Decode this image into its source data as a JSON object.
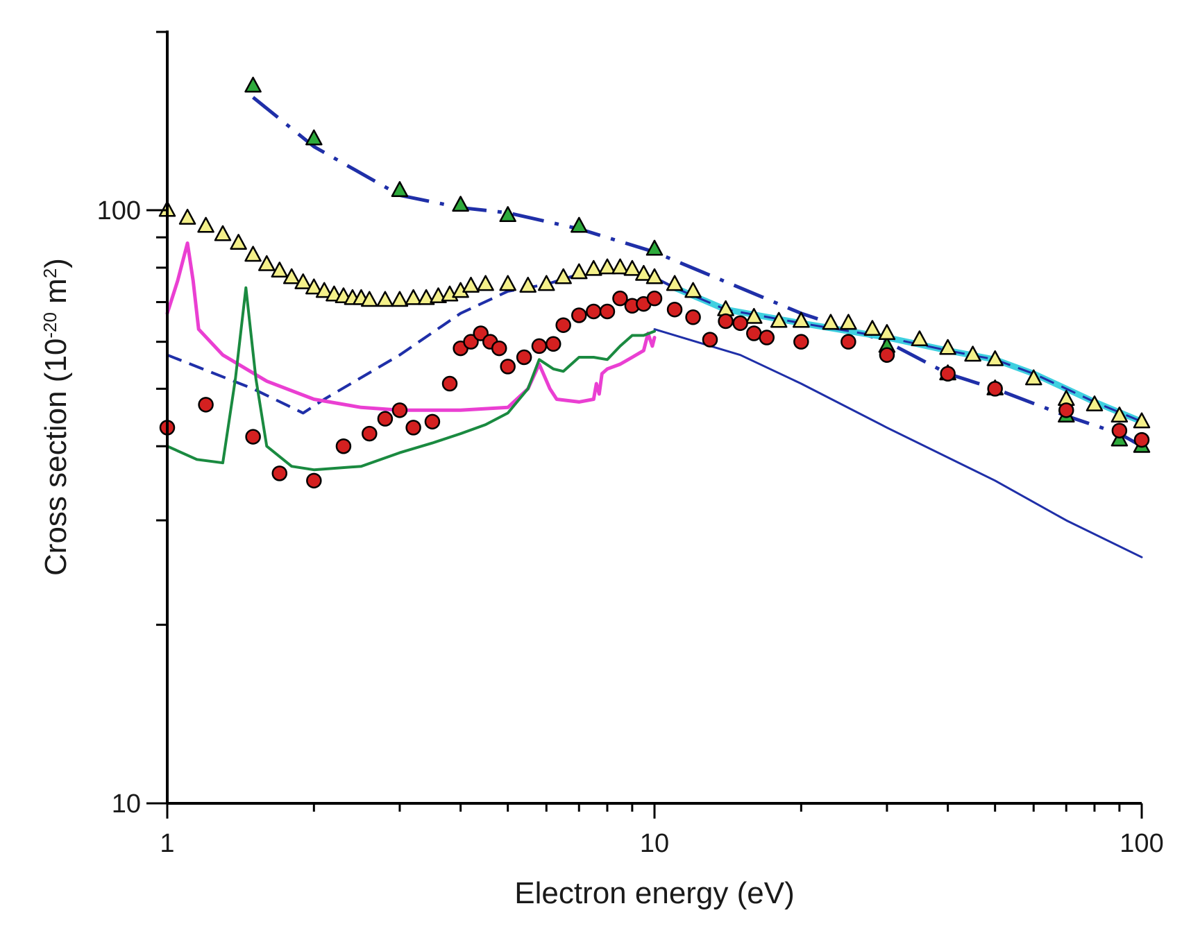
{
  "chart_data": {
    "type": "scatter",
    "title": "",
    "xlabel": "Electron energy (eV)",
    "ylabel_main": "Cross section (10",
    "ylabel_exp": "-20",
    "ylabel_unit": " m",
    "ylabel_unit_exp": "2",
    "ylabel_close": ")",
    "xscale": "log",
    "yscale": "log",
    "xlim": [
      1,
      100
    ],
    "ylim": [
      10,
      180
    ],
    "x_ticks": [
      {
        "value": 1,
        "label": "1"
      },
      {
        "value": 10,
        "label": "10"
      },
      {
        "value": 100,
        "label": "100"
      }
    ],
    "y_ticks": [
      {
        "value": 10,
        "label": "10"
      },
      {
        "value": 100,
        "label": "100"
      }
    ],
    "y_minor_ticks": [
      20,
      30,
      40,
      50,
      60,
      70,
      80,
      90
    ],
    "grid": false,
    "legend": "none",
    "series": [
      {
        "name": "Green-filled triangles",
        "kind": "marker",
        "marker": "triangle",
        "color": "#2eaa3c",
        "points": [
          [
            1.5,
            162
          ],
          [
            2,
            132
          ],
          [
            3,
            108
          ],
          [
            4,
            102
          ],
          [
            5,
            98
          ],
          [
            7,
            94
          ],
          [
            10,
            86
          ],
          [
            20,
            65
          ],
          [
            30,
            59
          ],
          [
            40,
            53
          ],
          [
            50,
            50
          ],
          [
            70,
            45
          ],
          [
            90,
            41
          ],
          [
            100,
            40
          ]
        ]
      },
      {
        "name": "Yellow-filled triangles",
        "kind": "marker",
        "marker": "triangle",
        "color": "#f4f08a",
        "points": [
          [
            1,
            100
          ],
          [
            1.1,
            97
          ],
          [
            1.2,
            94
          ],
          [
            1.3,
            91
          ],
          [
            1.4,
            88
          ],
          [
            1.5,
            84
          ],
          [
            1.6,
            81
          ],
          [
            1.7,
            79
          ],
          [
            1.8,
            77
          ],
          [
            1.9,
            75.5
          ],
          [
            2,
            74
          ],
          [
            2.1,
            73
          ],
          [
            2.2,
            72
          ],
          [
            2.3,
            71.5
          ],
          [
            2.4,
            71
          ],
          [
            2.5,
            71
          ],
          [
            2.6,
            70.5
          ],
          [
            2.8,
            70.5
          ],
          [
            3,
            70.5
          ],
          [
            3.2,
            71
          ],
          [
            3.4,
            71
          ],
          [
            3.6,
            71.5
          ],
          [
            3.8,
            72
          ],
          [
            4,
            73
          ],
          [
            4.2,
            74.5
          ],
          [
            4.5,
            75
          ],
          [
            5,
            75
          ],
          [
            5.5,
            74.5
          ],
          [
            6,
            75
          ],
          [
            6.5,
            77
          ],
          [
            7,
            78.5
          ],
          [
            7.5,
            79.5
          ],
          [
            8,
            80
          ],
          [
            8.5,
            80
          ],
          [
            9,
            79.5
          ],
          [
            9.5,
            78
          ],
          [
            10,
            77
          ],
          [
            11,
            75
          ],
          [
            12,
            73
          ],
          [
            14,
            68
          ],
          [
            16,
            66
          ],
          [
            18,
            65
          ],
          [
            20,
            65
          ],
          [
            23,
            64.5
          ],
          [
            25,
            64.5
          ],
          [
            28,
            63
          ],
          [
            30,
            62
          ],
          [
            35,
            60.5
          ],
          [
            40,
            58.5
          ],
          [
            45,
            57
          ],
          [
            50,
            56
          ],
          [
            60,
            52
          ],
          [
            70,
            48
          ],
          [
            80,
            47
          ],
          [
            90,
            45
          ],
          [
            100,
            44
          ]
        ]
      },
      {
        "name": "Red-filled circles",
        "kind": "marker",
        "marker": "circle",
        "color": "#d42020",
        "points": [
          [
            1,
            43
          ],
          [
            1.2,
            47
          ],
          [
            1.5,
            41.5
          ],
          [
            1.7,
            36
          ],
          [
            2,
            35
          ],
          [
            2.3,
            40
          ],
          [
            2.6,
            42
          ],
          [
            2.8,
            44.5
          ],
          [
            3,
            46
          ],
          [
            3.2,
            43
          ],
          [
            3.5,
            44
          ],
          [
            3.8,
            51
          ],
          [
            4,
            58.5
          ],
          [
            4.2,
            60
          ],
          [
            4.4,
            62
          ],
          [
            4.6,
            60
          ],
          [
            4.8,
            58.5
          ],
          [
            5,
            54.5
          ],
          [
            5.4,
            56.5
          ],
          [
            5.8,
            59
          ],
          [
            6.2,
            59.5
          ],
          [
            6.5,
            64
          ],
          [
            7,
            66.5
          ],
          [
            7.5,
            67.5
          ],
          [
            8,
            67.5
          ],
          [
            8.5,
            71
          ],
          [
            9,
            69
          ],
          [
            9.5,
            69.5
          ],
          [
            10,
            71
          ],
          [
            11,
            68
          ],
          [
            12,
            66
          ],
          [
            13,
            60.5
          ],
          [
            14,
            65
          ],
          [
            15,
            64.5
          ],
          [
            16,
            62
          ],
          [
            17,
            61
          ],
          [
            20,
            60
          ],
          [
            25,
            60
          ],
          [
            30,
            57
          ],
          [
            40,
            53
          ],
          [
            50,
            50
          ],
          [
            70,
            46
          ],
          [
            90,
            42.5
          ],
          [
            100,
            41
          ]
        ]
      },
      {
        "name": "Blue dash-dot",
        "kind": "line",
        "style": "dashdot",
        "color": "#1f2fa8",
        "width": 5,
        "points": [
          [
            1.5,
            155
          ],
          [
            2,
            128
          ],
          [
            3,
            106
          ],
          [
            4,
            101
          ],
          [
            5,
            99
          ],
          [
            7,
            93
          ],
          [
            10,
            85
          ],
          [
            20,
            67
          ],
          [
            30,
            60
          ],
          [
            40,
            53
          ],
          [
            50,
            50
          ],
          [
            70,
            45
          ],
          [
            90,
            42
          ],
          [
            100,
            40
          ]
        ]
      },
      {
        "name": "Blue dashed",
        "kind": "line",
        "style": "dashed",
        "color": "#1f2fa8",
        "width": 4,
        "points": [
          [
            1,
            57
          ],
          [
            1.5,
            50
          ],
          [
            1.9,
            45.5
          ],
          [
            2.1,
            48
          ],
          [
            3,
            57
          ],
          [
            4,
            67
          ],
          [
            5,
            73
          ],
          [
            6,
            75
          ],
          [
            7,
            78
          ],
          [
            8,
            79
          ],
          [
            9,
            78
          ],
          [
            10,
            77
          ],
          [
            11,
            74
          ]
        ]
      },
      {
        "name": "Cyan band",
        "kind": "line",
        "style": "solid",
        "color": "#3fd0e0",
        "width": 9,
        "points": [
          [
            11,
            74
          ],
          [
            14,
            68
          ],
          [
            20,
            64.5
          ],
          [
            30,
            61
          ],
          [
            40,
            58
          ],
          [
            50,
            56
          ],
          [
            60,
            53
          ],
          [
            70,
            50
          ],
          [
            80,
            47.5
          ],
          [
            100,
            44
          ]
        ]
      },
      {
        "name": "Blue dashed (overlay)",
        "kind": "line",
        "style": "dashed",
        "color": "#1f2fa8",
        "width": 3,
        "points": [
          [
            11,
            74
          ],
          [
            14,
            68
          ],
          [
            20,
            64.5
          ],
          [
            30,
            61
          ],
          [
            40,
            58
          ],
          [
            50,
            56
          ],
          [
            60,
            53
          ],
          [
            70,
            50
          ],
          [
            80,
            47.5
          ],
          [
            100,
            44
          ]
        ]
      },
      {
        "name": "Blue solid",
        "kind": "line",
        "style": "solid",
        "color": "#1f2fa8",
        "width": 3,
        "points": [
          [
            10,
            63
          ],
          [
            15,
            57
          ],
          [
            20,
            51
          ],
          [
            30,
            43
          ],
          [
            50,
            35
          ],
          [
            70,
            30
          ],
          [
            100,
            26
          ]
        ]
      },
      {
        "name": "Magenta solid",
        "kind": "line",
        "style": "solid",
        "color": "#ea3fd2",
        "width": 5,
        "points": [
          [
            1,
            67
          ],
          [
            1.05,
            76
          ],
          [
            1.1,
            88
          ],
          [
            1.13,
            76
          ],
          [
            1.16,
            63
          ],
          [
            1.3,
            57
          ],
          [
            1.6,
            51.5
          ],
          [
            2,
            48
          ],
          [
            2.5,
            46.5
          ],
          [
            3,
            46
          ],
          [
            4,
            46
          ],
          [
            5,
            46.5
          ],
          [
            5.5,
            50
          ],
          [
            5.8,
            55
          ],
          [
            6.1,
            50
          ],
          [
            6.3,
            48
          ],
          [
            7,
            47.5
          ],
          [
            7.5,
            48
          ],
          [
            7.6,
            51
          ],
          [
            7.7,
            49
          ],
          [
            7.8,
            53
          ],
          [
            8,
            54
          ],
          [
            8.5,
            55
          ],
          [
            9,
            56.5
          ],
          [
            9.5,
            58
          ],
          [
            9.7,
            62
          ],
          [
            9.9,
            59
          ],
          [
            10,
            61
          ]
        ]
      },
      {
        "name": "Green solid",
        "kind": "line",
        "style": "solid",
        "color": "#1a8a40",
        "width": 4,
        "points": [
          [
            1,
            40
          ],
          [
            1.15,
            38
          ],
          [
            1.3,
            37.5
          ],
          [
            1.38,
            52
          ],
          [
            1.45,
            74
          ],
          [
            1.52,
            52
          ],
          [
            1.6,
            40
          ],
          [
            1.8,
            37
          ],
          [
            2,
            36.5
          ],
          [
            2.5,
            37
          ],
          [
            3,
            39
          ],
          [
            3.5,
            40.5
          ],
          [
            4,
            42
          ],
          [
            4.5,
            43.5
          ],
          [
            5,
            45.5
          ],
          [
            5.5,
            50
          ],
          [
            5.8,
            56
          ],
          [
            6.2,
            54
          ],
          [
            6.5,
            53.5
          ],
          [
            7,
            56.5
          ],
          [
            7.5,
            56.5
          ],
          [
            8,
            56
          ],
          [
            8.5,
            59
          ],
          [
            9,
            61.5
          ],
          [
            9.5,
            61.5
          ],
          [
            10,
            62.5
          ]
        ]
      }
    ]
  }
}
